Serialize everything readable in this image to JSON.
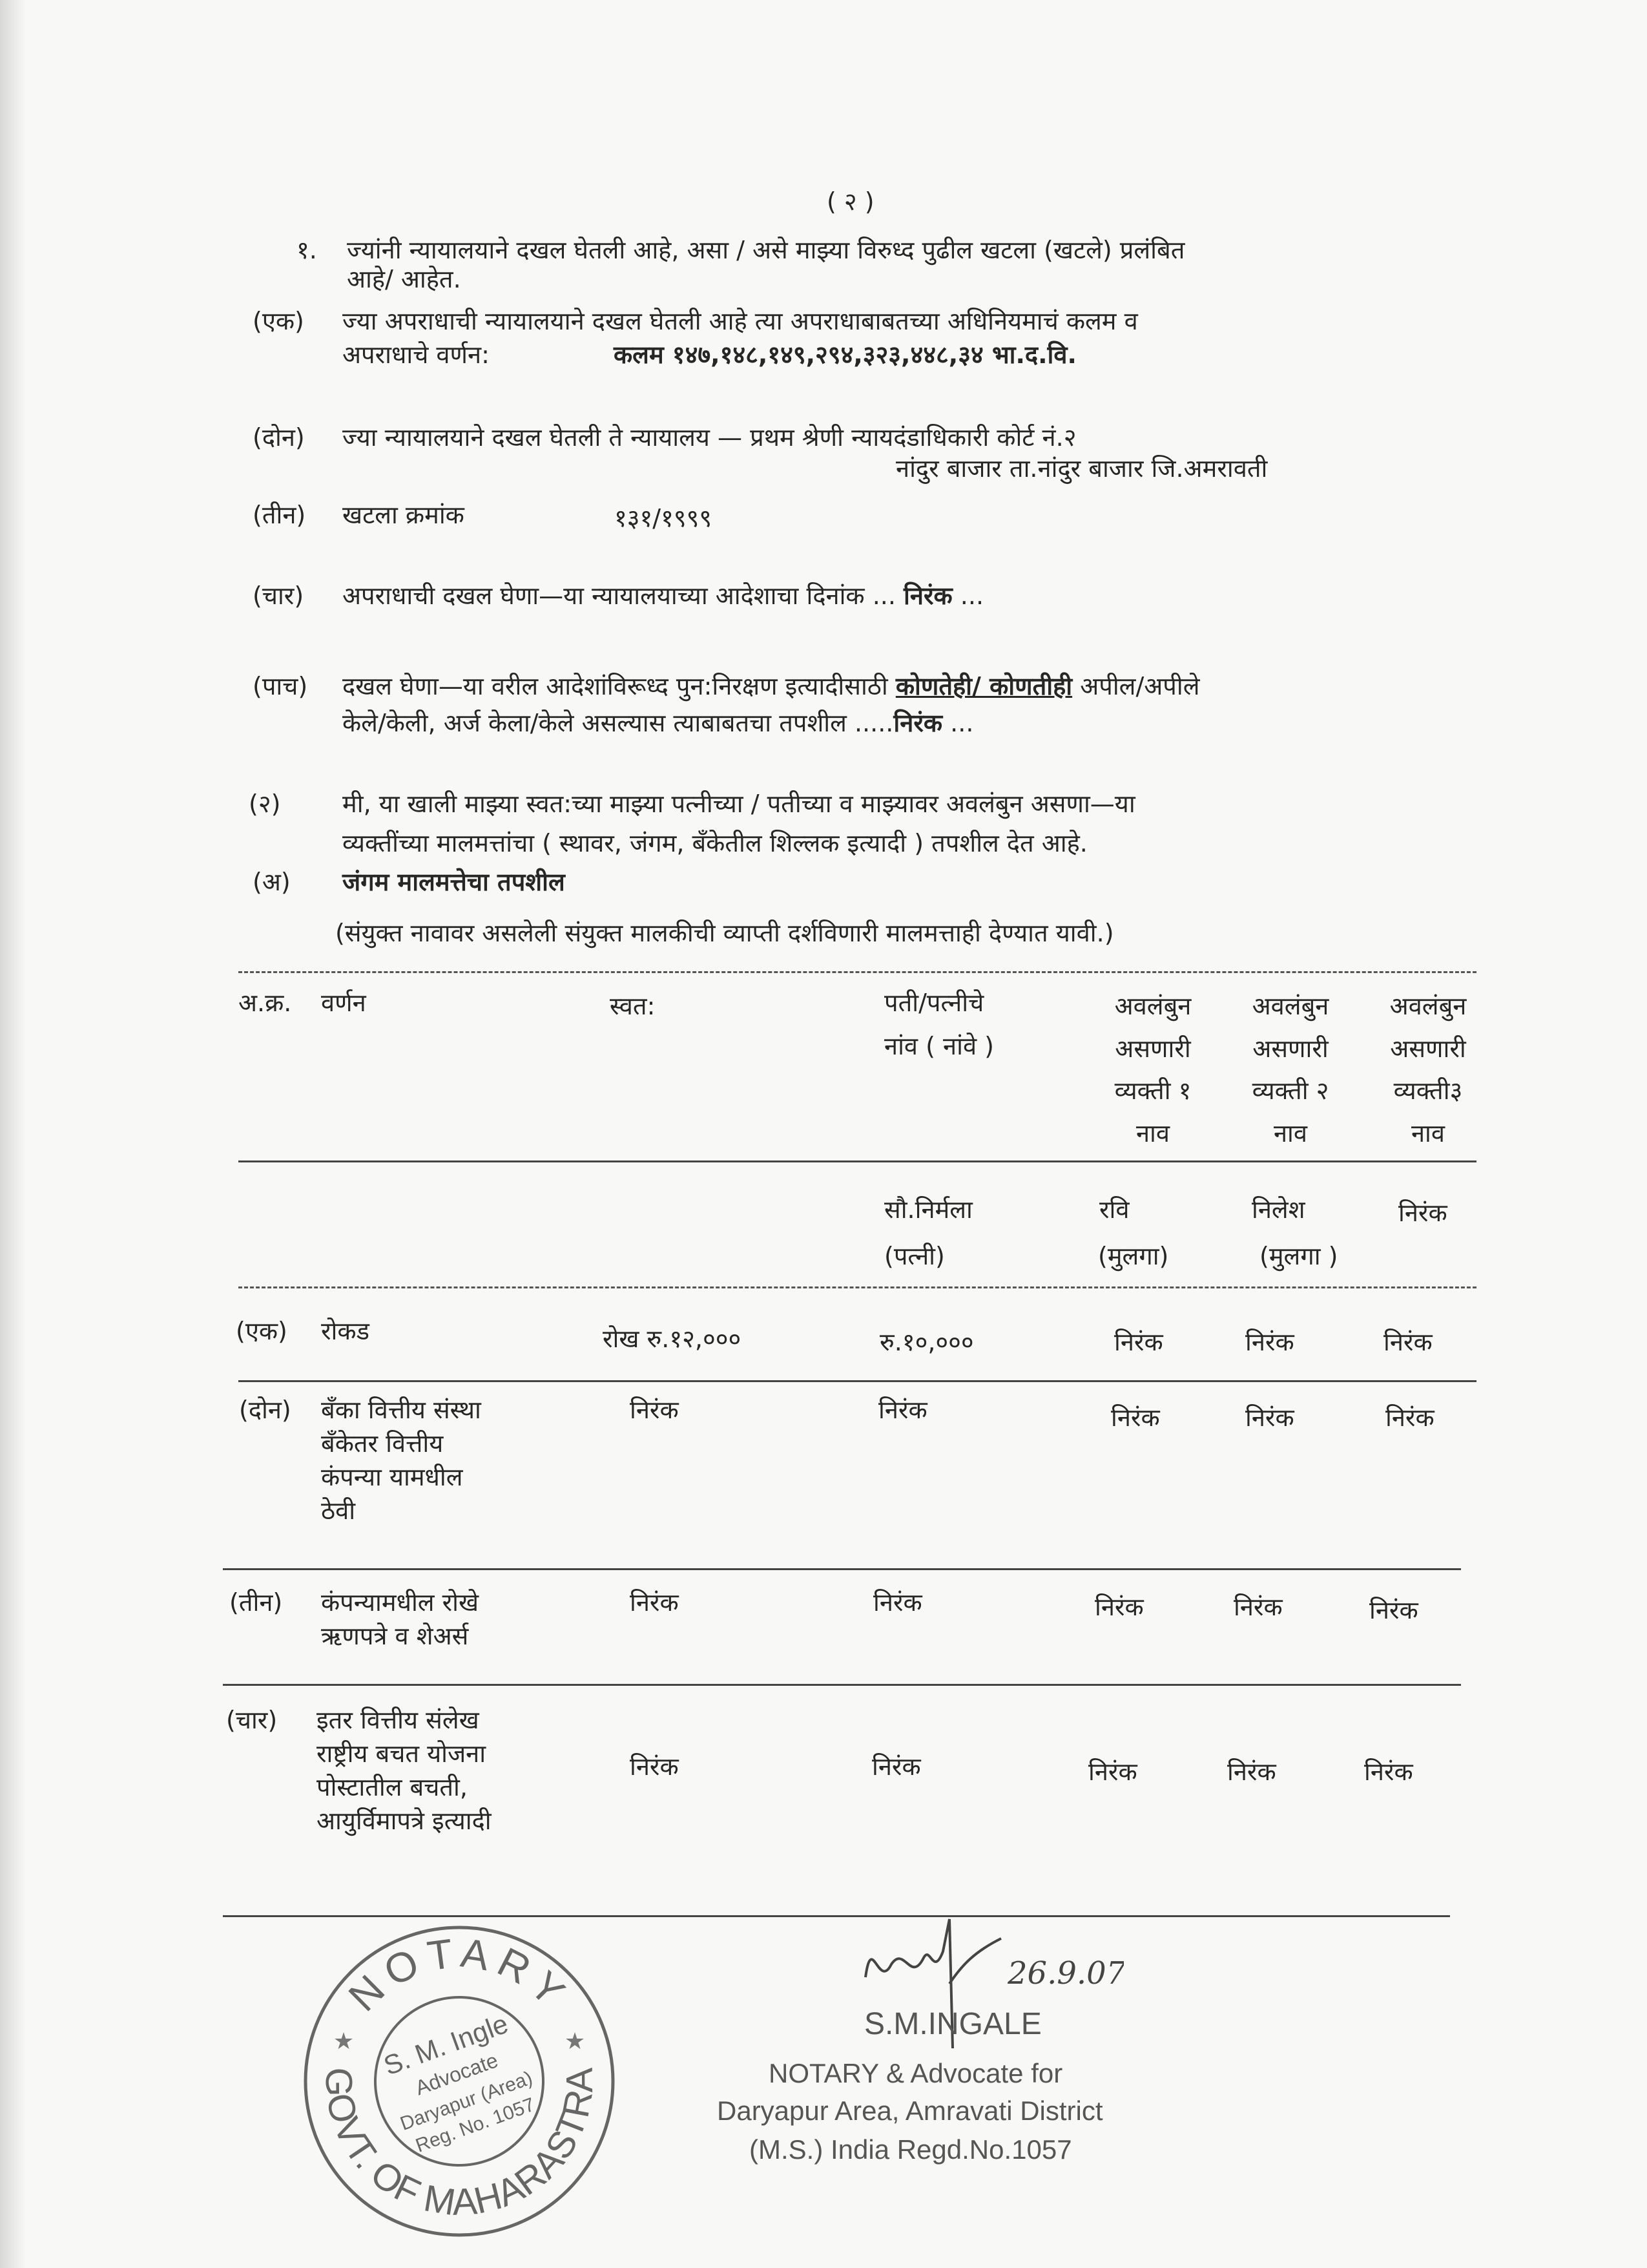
{
  "page_number": "( २ )",
  "item1": {
    "num": "१.",
    "line1": "ज्यांनी न्यायालयाने दखल घेतली आहे, असा / असे माझ्या विरुध्द पुढील खटला (खटले) प्रलंबित",
    "line2": "आहे/ आहेत."
  },
  "sub_ek": {
    "label": "(एक)",
    "line1": "ज्या अपराधाची न्यायालयाने दखल घेतली आहे त्या अपराधाबाबतच्या अधिनियमाचं कलम व",
    "line2": "अपराधाचे वर्णन:",
    "value": "कलम १४७,१४८,१४९,२९४,३२३,४४८,३४ भा.द.वि."
  },
  "sub_don": {
    "label": "(दोन)",
    "line1": "ज्या न्यायालयाने दखल घेतली ते न्यायालय — प्रथम श्रेणी न्यायदंडाधिकारी कोर्ट नं.२",
    "line2": "नांदुर बाजार ता.नांदुर बाजार जि.अमरावती"
  },
  "sub_teen": {
    "label": "(तीन)",
    "text": "खटला क्रमांक",
    "value": "१३१/१९९९"
  },
  "sub_chaar": {
    "label": "(चार)",
    "text": "अपराधाची दखल घेणा—या न्यायालयाच्या आदेशाचा दिनांक ...",
    "value": "निरंक",
    "tail": "..."
  },
  "sub_paach": {
    "label": "(पाच)",
    "line1_a": "दखल घेणा—या वरील आदेशांविरूध्द पुन:निरक्षण इत्यादीसाठी",
    "line1_u": "कोणतेही/ कोणतीही",
    "line1_b": "अपील/अपीले",
    "line2": "केले/केली, अर्ज केला/केले असल्यास त्याबाबतचा तपशील .....",
    "value": "निरंक",
    "tail": "..."
  },
  "item2": {
    "label": "(२)",
    "line1": "मी, या खाली माझ्या स्वत:च्या माझ्या पत्नीच्या / पतीच्या व माझ्यावर अवलंबुन असणा—या",
    "line2": "व्यक्तींच्या मालमत्तांचा ( स्थावर, जंगम, बँकेतील शिल्लक इत्यादी ) तपशील देत आहे."
  },
  "sub_a": {
    "label": "(अ)",
    "title": "जंगम मालमत्तेचा तपशील",
    "note": "(संयुक्त नावावर असलेली संयुक्त मालकीची व्याप्ती दर्शविणारी मालमत्ताही देण्यात यावी.)"
  },
  "table": {
    "headers": {
      "sr": "अ.क्र.",
      "desc": "वर्णन",
      "self": "स्वत:",
      "spouse": [
        "पती/पत्नीचे",
        "नांव ( नांवे )"
      ],
      "dep1": [
        "अवलंबुन",
        "असणारी",
        "व्यक्ती १",
        "नाव"
      ],
      "dep2": [
        "अवलंबुन",
        "असणारी",
        "व्यक्ती २",
        "नाव"
      ],
      "dep3": [
        "अवलंबुन",
        "असणारी",
        "व्यक्ती३",
        "नाव"
      ]
    },
    "names": {
      "spouse": [
        "सौ.निर्मला",
        "(पत्नी)"
      ],
      "dep1": [
        "रवि",
        "(मुलगा)"
      ],
      "dep2": [
        "निलेश",
        "(मुलगा )"
      ],
      "dep3": [
        "निरंक"
      ]
    },
    "rows": [
      {
        "sr": "(एक)",
        "desc": [
          "रोकड"
        ],
        "self": "रोख रु.१२,०००",
        "spouse": "रु.१०,०००",
        "dep1": "निरंक",
        "dep2": "निरंक",
        "dep3": "निरंक"
      },
      {
        "sr": "(दोन)",
        "desc": [
          "बँका वित्तीय संस्था",
          "बँकेतर वित्तीय",
          "कंपन्या यामधील",
          "ठेवी"
        ],
        "self": "निरंक",
        "spouse": "निरंक",
        "dep1": "निरंक",
        "dep2": "निरंक",
        "dep3": "निरंक"
      },
      {
        "sr": "(तीन)",
        "desc": [
          "कंपन्यामधील रोखे",
          "ऋणपत्रे व शेअर्स"
        ],
        "self": "निरंक",
        "spouse": "निरंक",
        "dep1": "निरंक",
        "dep2": "निरंक",
        "dep3": "निरंक"
      },
      {
        "sr": "(चार)",
        "desc": [
          "इतर वित्तीय संलेख",
          "राष्ट्रीय बचत योजना",
          "पोस्टातील बचती,",
          "आयुर्विमापत्रे इत्यादी"
        ],
        "self": "निरंक",
        "spouse": "निरंक",
        "dep1": "निरंक",
        "dep2": "निरंक",
        "dep3": "निरंक"
      }
    ]
  },
  "stamp": {
    "outer_top": "NOTARY",
    "outer_bottom": "GOVT. OF MAHARASTRA",
    "inner": [
      "S. M. Ingle",
      "Advocate",
      "Daryapur (Area)",
      "Reg. No. 1057"
    ]
  },
  "signature": {
    "date": "26.9.07",
    "name": "S.M.INGALE",
    "line1": "NOTARY & Advocate for",
    "line2": "Daryapur Area, Amravati District",
    "line3": "(M.S.) India Regd.No.1057"
  }
}
